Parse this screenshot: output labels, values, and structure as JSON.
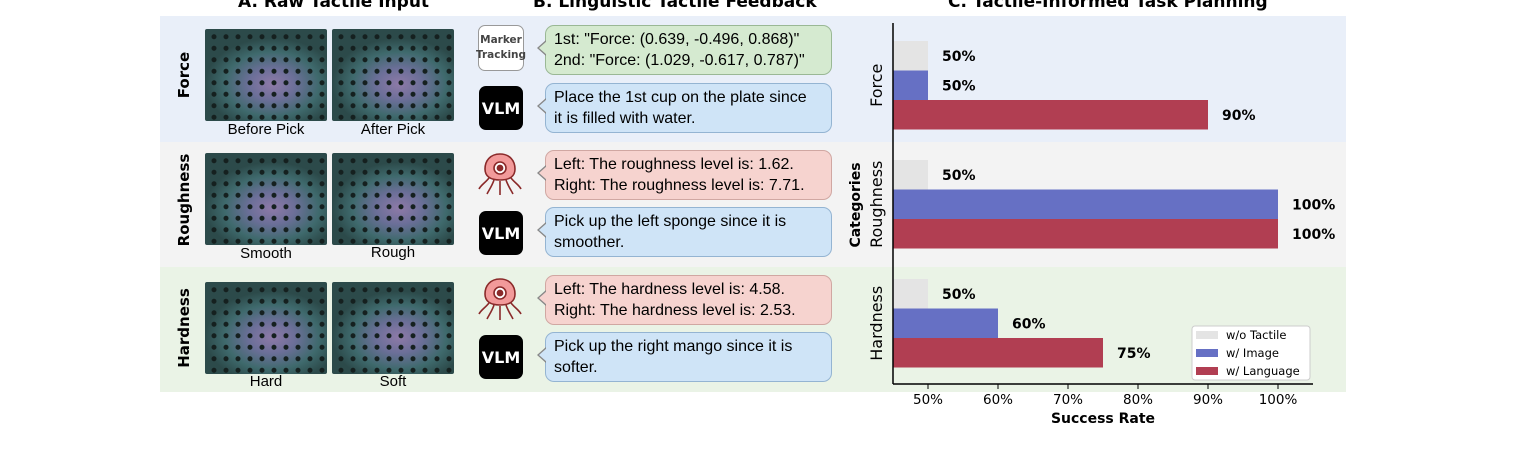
{
  "titles": {
    "a": "A. Raw Tactile Input",
    "b": "B. Linguistic Tactile Feedback",
    "c": "C. Tactile-Informed Task Planning"
  },
  "colors": {
    "force_band": "#e9eff9",
    "roughness_band": "#f3f3f3",
    "hardness_band": "#eaf3e6",
    "wo_tactile": "#e4e4e4",
    "w_image": "#6670c4",
    "w_language": "#b13e52"
  },
  "rows": [
    {
      "label": "Force",
      "captions": [
        "Before Pick",
        "After Pick"
      ],
      "sensor": {
        "type": "marker-box",
        "label_line1": "Marker",
        "label_line2": "Tracking"
      },
      "feedback": [
        "1st: \"Force: (0.639, -0.496, 0.868)\"",
        "2nd: \"Force: (1.029, -0.617, 0.787)\""
      ],
      "vlm_label": "VLM",
      "plan": [
        "Place the 1st cup on the plate since",
        "it is filled with water."
      ]
    },
    {
      "label": "Roughness",
      "captions": [
        "Smooth",
        "Rough"
      ],
      "sensor": {
        "type": "octopus-icon"
      },
      "feedback": [
        "Left: The roughness level is: 1.62.",
        "Right: The roughness level is: 7.71."
      ],
      "vlm_label": "VLM",
      "plan": [
        "Pick up the left sponge since it is",
        "smoother."
      ]
    },
    {
      "label": "Hardness",
      "captions": [
        "Hard",
        "Soft"
      ],
      "sensor": {
        "type": "octopus-icon"
      },
      "feedback": [
        "Left: The hardness level is: 4.58.",
        "Right: The hardness level is: 2.53."
      ],
      "vlm_label": "VLM",
      "plan": [
        "Pick up the right mango since it is",
        "softer."
      ]
    }
  ],
  "chart_data": {
    "type": "bar",
    "orientation": "horizontal",
    "categories": [
      "Force",
      "Roughness",
      "Hardness"
    ],
    "series": [
      {
        "name": "w/o Tactile",
        "values": [
          50,
          50,
          50
        ],
        "color": "#e4e4e4"
      },
      {
        "name": "w/ Image",
        "values": [
          50,
          100,
          60
        ],
        "color": "#6670c4"
      },
      {
        "name": "w/ Language",
        "values": [
          90,
          100,
          75
        ],
        "color": "#b13e52"
      }
    ],
    "data_labels": [
      [
        "50%",
        "50%",
        "90%"
      ],
      [
        "50%",
        "100%",
        "100%"
      ],
      [
        "50%",
        "60%",
        "75%"
      ]
    ],
    "xlabel": "Success Rate",
    "ylabel": "Categories",
    "xlim": [
      45,
      105
    ],
    "xticks": [
      50,
      60,
      70,
      80,
      90,
      100
    ],
    "xtick_labels": [
      "50%",
      "60%",
      "70%",
      "80%",
      "90%",
      "100%"
    ],
    "legend_position": "bottom-right",
    "grid": false
  }
}
